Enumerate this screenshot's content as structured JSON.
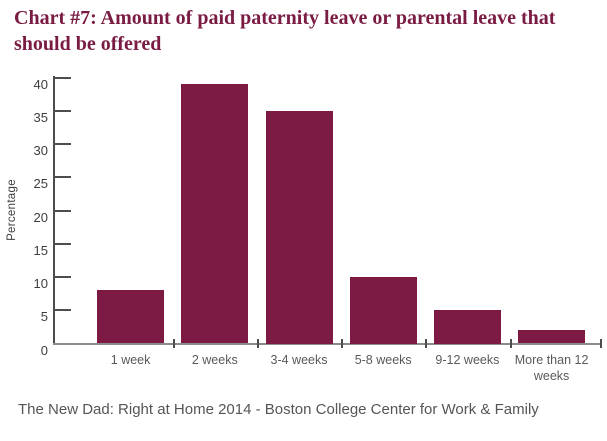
{
  "title": "Chart #7: Amount of paid paternity leave or parental leave that should be offered",
  "footer": "The New Dad: Right at Home 2014 - Boston College Center for Work & Family",
  "colors": {
    "accent": "#7d1a43",
    "title_text": "#7a1b44",
    "axis": "#4d4d4d",
    "label_text": "#595959"
  },
  "chart_data": {
    "type": "bar",
    "title": "Chart #7: Amount of paid paternity leave or parental leave that should be offered",
    "categories": [
      "1 week",
      "2 weeks",
      "3-4 weeks",
      "5-8 weeks",
      "9-12 weeks",
      "More than 12 weeks"
    ],
    "values": [
      8,
      39,
      35,
      10,
      5,
      2
    ],
    "xlabel": "",
    "ylabel": "Percentage",
    "ylim": [
      0,
      40
    ],
    "yticks": [
      0,
      5,
      10,
      15,
      20,
      25,
      30,
      35,
      40
    ],
    "bar_color": "#7d1a43",
    "grid": false,
    "legend": false,
    "source": "The New Dad: Right at Home 2014 - Boston College Center for Work & Family"
  }
}
